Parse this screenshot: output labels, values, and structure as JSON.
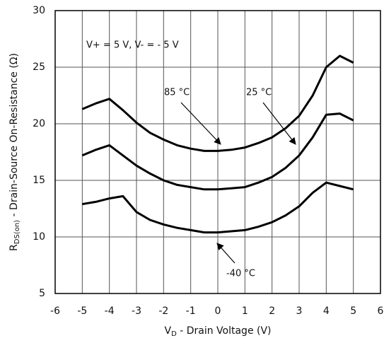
{
  "chart_data": {
    "type": "line",
    "x": [
      -5,
      -4.5,
      -4,
      -3.5,
      -3,
      -2.5,
      -2,
      -1.5,
      -1,
      -0.5,
      0,
      0.5,
      1,
      1.5,
      2,
      2.5,
      3,
      3.5,
      4,
      4.5,
      5
    ],
    "series": [
      {
        "name": "85 °C",
        "color": "#000000",
        "values": [
          21.3,
          21.8,
          22.2,
          21.2,
          20.1,
          19.2,
          18.6,
          18.1,
          17.8,
          17.6,
          17.6,
          17.7,
          17.9,
          18.3,
          18.8,
          19.6,
          20.7,
          22.5,
          25.0,
          26.0,
          25.4
        ]
      },
      {
        "name": "25 °C",
        "color": "#000000",
        "values": [
          17.2,
          17.7,
          18.1,
          17.2,
          16.3,
          15.6,
          15.0,
          14.6,
          14.4,
          14.2,
          14.2,
          14.3,
          14.4,
          14.8,
          15.3,
          16.1,
          17.2,
          18.8,
          20.8,
          20.9,
          20.3
        ]
      },
      {
        "name": "-40 °C",
        "color": "#000000",
        "values": [
          12.9,
          13.1,
          13.4,
          13.6,
          12.2,
          11.5,
          11.1,
          10.8,
          10.6,
          10.4,
          10.4,
          10.5,
          10.6,
          10.9,
          11.3,
          11.9,
          12.7,
          13.9,
          14.8,
          14.5,
          14.2
        ]
      }
    ],
    "annotation": "V+ = 5 V, V- = - 5 V",
    "x_label": {
      "main": "V",
      "sub": "D",
      "rest": " - Drain Voltage (V)"
    },
    "y_label": {
      "main": "R",
      "sub": "DS(on)",
      "rest": " - Drain-Source On-Resistance (Ω)"
    },
    "xlim": [
      -6,
      6
    ],
    "xticks": [
      -6,
      -5,
      -4,
      -3,
      -2,
      -1,
      0,
      1,
      2,
      3,
      4,
      5,
      6
    ],
    "ylim": [
      5,
      30
    ],
    "yticks": [
      5,
      10,
      15,
      20,
      25,
      30
    ],
    "grid": true
  }
}
